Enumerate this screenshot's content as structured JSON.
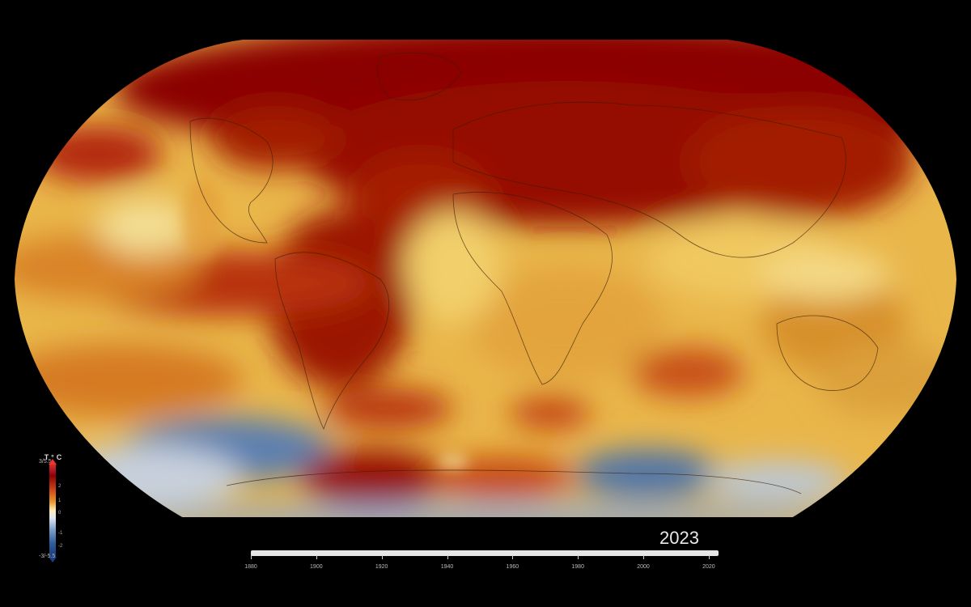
{
  "year": "2023",
  "legend": {
    "units": "T°C",
    "max_label": "3/5.5",
    "min_label": "-3/-5.5",
    "ticks": [
      "2",
      "1",
      "0",
      "-1",
      "-2"
    ]
  },
  "timeline": {
    "labels": [
      "1880",
      "1900",
      "1920",
      "1940",
      "1960",
      "1980",
      "2000",
      "2020"
    ],
    "start": 1880,
    "end": 2023,
    "current": 2023
  },
  "colors": {
    "background": "#000000",
    "hot": "#8b0000",
    "warm": "#d9781b",
    "neutral": "#f3d873",
    "cool": "#9fb4cf",
    "cold": "#3e6295"
  }
}
